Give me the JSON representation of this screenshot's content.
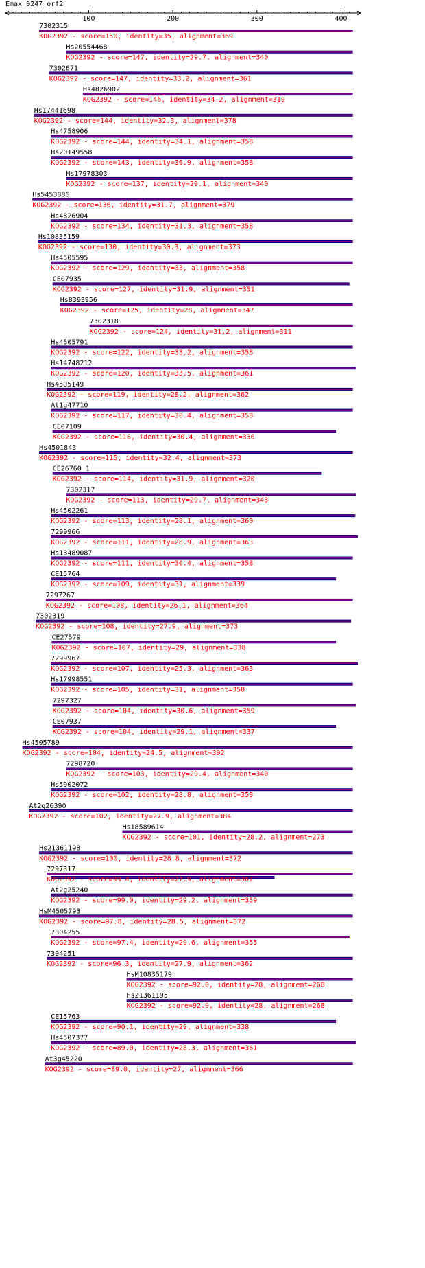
{
  "query": {
    "title": "Emax_0247_orf2",
    "length": 420
  },
  "axis": {
    "min": 1,
    "max": 420,
    "major_ticks": [
      100,
      200,
      300,
      400
    ],
    "minor_step": 10
  },
  "colors": {
    "bar_outer": "#000080",
    "bar_inner": "#800080",
    "desc": "#ff0000",
    "text": "#000000"
  },
  "hits": [
    {
      "name": "7302315",
      "desc": "KOG2392 - score=150, identity=35, alignment=369",
      "start": 41,
      "end": 414
    },
    {
      "name": "Hs20554468",
      "desc": "KOG2392 - score=147, identity=29.7, alignment=340",
      "start": 73,
      "end": 414
    },
    {
      "name": "7302671",
      "desc": "KOG2392 - score=147, identity=33.2, alignment=361",
      "start": 53,
      "end": 414
    },
    {
      "name": "Hs4826902",
      "desc": "KOG2392 - score=146, identity=34.2, alignment=319",
      "start": 93,
      "end": 414
    },
    {
      "name": "Hs17441698",
      "desc": "KOG2392 - score=144, identity=32.3, alignment=378",
      "start": 35,
      "end": 414
    },
    {
      "name": "Hs4758906",
      "desc": "KOG2392 - score=144, identity=34.1, alignment=358",
      "start": 55,
      "end": 414
    },
    {
      "name": "Hs20149558",
      "desc": "KOG2392 - score=143, identity=36.9, alignment=358",
      "start": 55,
      "end": 414
    },
    {
      "name": "Hs17978303",
      "desc": "KOG2392 - score=137, identity=29.1, alignment=340",
      "start": 73,
      "end": 414
    },
    {
      "name": "Hs5453886",
      "desc": "KOG2392 - score=136, identity=31.7, alignment=379",
      "start": 33,
      "end": 414
    },
    {
      "name": "Hs4826904",
      "desc": "KOG2392 - score=134, identity=31.3, alignment=358",
      "start": 55,
      "end": 414
    },
    {
      "name": "Hs10835159",
      "desc": "KOG2392 - score=130, identity=30.3, alignment=373",
      "start": 40,
      "end": 414
    },
    {
      "name": "Hs4505595",
      "desc": "KOG2392 - score=129, identity=33, alignment=358",
      "start": 55,
      "end": 414
    },
    {
      "name": "CE07935",
      "desc": "KOG2392 - score=127, identity=31.9, alignment=351",
      "start": 57,
      "end": 410
    },
    {
      "name": "Hs8393956",
      "desc": "KOG2392 - score=125, identity=28, alignment=347",
      "start": 66,
      "end": 414
    },
    {
      "name": "7302318",
      "desc": "KOG2392 - score=124, identity=31.2, alignment=311",
      "start": 101,
      "end": 414
    },
    {
      "name": "Hs4505791",
      "desc": "KOG2392 - score=122, identity=33.2, alignment=358",
      "start": 55,
      "end": 414
    },
    {
      "name": "Hs14748212",
      "desc": "KOG2392 - score=120, identity=33.5, alignment=361",
      "start": 55,
      "end": 418
    },
    {
      "name": "Hs4505149",
      "desc": "KOG2392 - score=119, identity=28.2, alignment=362",
      "start": 50,
      "end": 414
    },
    {
      "name": "At1g47710",
      "desc": "KOG2392 - score=117, identity=30.4, alignment=358",
      "start": 55,
      "end": 414
    },
    {
      "name": "CE07109",
      "desc": "KOG2392 - score=116, identity=30.4, alignment=336",
      "start": 57,
      "end": 394
    },
    {
      "name": "Hs4501843",
      "desc": "KOG2392 - score=115, identity=32.4, alignment=373",
      "start": 41,
      "end": 414
    },
    {
      "name": "CE26760_1",
      "desc": "KOG2392 - score=114, identity=31.9, alignment=320",
      "start": 57,
      "end": 377
    },
    {
      "name": "7302317",
      "desc": "KOG2392 - score=113, identity=29.7, alignment=343",
      "start": 73,
      "end": 418
    },
    {
      "name": "Hs4502261",
      "desc": "KOG2392 - score=113, identity=28.1, alignment=360",
      "start": 55,
      "end": 417
    },
    {
      "name": "7299966",
      "desc": "KOG2392 - score=111, identity=28.9, alignment=363",
      "start": 55,
      "end": 420
    },
    {
      "name": "Hs13489087",
      "desc": "KOG2392 - score=111, identity=30.4, alignment=358",
      "start": 55,
      "end": 414
    },
    {
      "name": "CE15764",
      "desc": "KOG2392 - score=109, identity=31, alignment=339",
      "start": 55,
      "end": 394
    },
    {
      "name": "7297267",
      "desc": "KOG2392 - score=108, identity=26.1, alignment=364",
      "start": 49,
      "end": 414
    },
    {
      "name": "7302319",
      "desc": "KOG2392 - score=108, identity=27.9, alignment=373",
      "start": 37,
      "end": 412
    },
    {
      "name": "CE27579",
      "desc": "KOG2392 - score=107, identity=29, alignment=338",
      "start": 56,
      "end": 394
    },
    {
      "name": "7299967",
      "desc": "KOG2392 - score=107, identity=25.3, alignment=363",
      "start": 55,
      "end": 420
    },
    {
      "name": "Hs17998551",
      "desc": "KOG2392 - score=105, identity=31, alignment=358",
      "start": 55,
      "end": 414
    },
    {
      "name": "7297327",
      "desc": "KOG2392 - score=104, identity=30.6, alignment=359",
      "start": 57,
      "end": 418
    },
    {
      "name": "CE07937",
      "desc": "KOG2392 - score=104, identity=29.1, alignment=337",
      "start": 57,
      "end": 394
    },
    {
      "name": "Hs4505789",
      "desc": "KOG2392 - score=104, identity=24.5, alignment=392",
      "start": 21,
      "end": 414
    },
    {
      "name": "7298720",
      "desc": "KOG2392 - score=103, identity=29.4, alignment=340",
      "start": 73,
      "end": 414
    },
    {
      "name": "Hs5902072",
      "desc": "KOG2392 - score=102, identity=28.8, alignment=358",
      "start": 55,
      "end": 414
    },
    {
      "name": "At2g26390",
      "desc": "KOG2392 - score=102, identity=27.9, alignment=384",
      "start": 29,
      "end": 414
    },
    {
      "name": "Hs18589614",
      "desc": "KOG2392 - score=101, identity=28.2, alignment=273",
      "start": 140,
      "end": 414
    },
    {
      "name": "Hs21361198",
      "desc": "KOG2392 - score=100, identity=28.8, alignment=372",
      "start": 41,
      "end": 414
    },
    {
      "name": "7297317",
      "desc": "KOG2392 - score=99.4, identity=27.9, alignment=362",
      "start": 50,
      "end": 414,
      "extra": {
        "start": 55,
        "end": 321
      }
    },
    {
      "name": "At2g25240",
      "desc": "KOG2392 - score=99.0, identity=29.2, alignment=359",
      "start": 55,
      "end": 414
    },
    {
      "name": "HsM4505793",
      "desc": "KOG2392 - score=97.8, identity=28.5, alignment=372",
      "start": 41,
      "end": 414
    },
    {
      "name": "7304255",
      "desc": "KOG2392 - score=97.4, identity=29.6, alignment=355",
      "start": 55,
      "end": 410
    },
    {
      "name": "7304251",
      "desc": "KOG2392 - score=96.3, identity=27.9, alignment=362",
      "start": 50,
      "end": 414
    },
    {
      "name": "HsM10835179",
      "desc": "KOG2392 - score=92.0, identity=28, alignment=268",
      "start": 145,
      "end": 414
    },
    {
      "name": "Hs21361195",
      "desc": "KOG2392 - score=92.0, identity=28, alignment=268",
      "start": 145,
      "end": 414
    },
    {
      "name": "CE15763",
      "desc": "KOG2392 - score=90.1, identity=29, alignment=338",
      "start": 55,
      "end": 394
    },
    {
      "name": "Hs4507377",
      "desc": "KOG2392 - score=89.0, identity=28.3, alignment=361",
      "start": 55,
      "end": 418
    },
    {
      "name": "At3g45220",
      "desc": "KOG2392 - score=89.0, identity=27, alignment=366",
      "start": 48,
      "end": 414
    }
  ]
}
